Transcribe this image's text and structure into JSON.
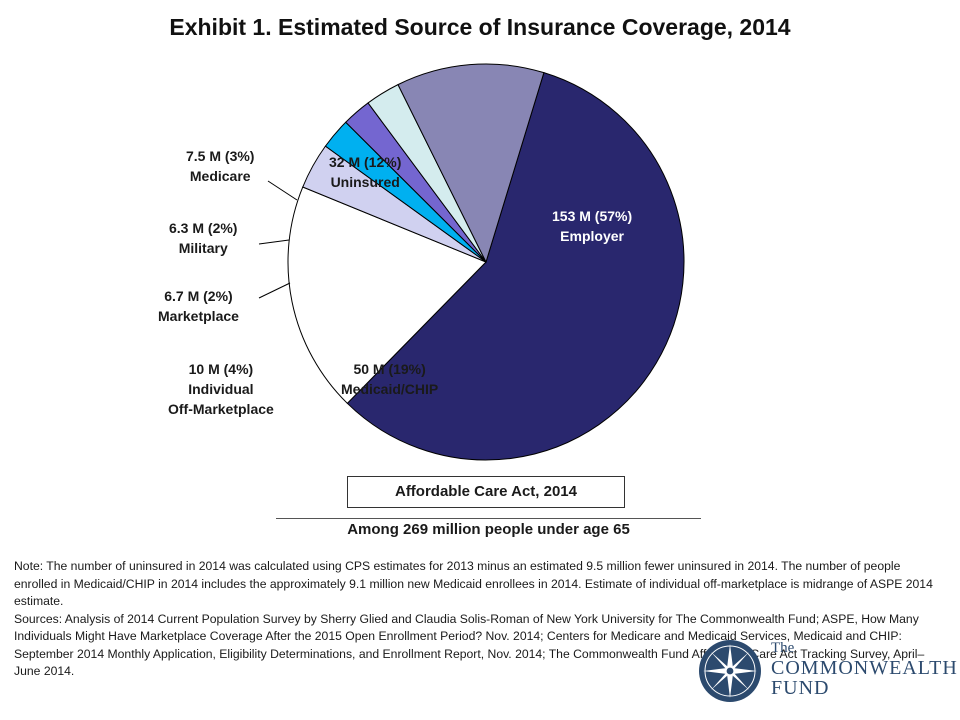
{
  "chart_data": {
    "type": "pie",
    "title": "Exhibit 1. Estimated Source of Insurance Coverage, 2014",
    "slices": [
      {
        "value_label": "153 M (57%)",
        "category": "Employer",
        "value": 153,
        "percent": 57,
        "color": "#29276e"
      },
      {
        "value_label": "50 M (19%)",
        "category": "Medicaid/CHIP",
        "value": 50,
        "percent": 19,
        "color": "#ffffff"
      },
      {
        "value_label": "10 M (4%)",
        "category": "Individual",
        "category2": "Off-Marketplace",
        "value": 10,
        "percent": 4,
        "color": "#d0d1f0"
      },
      {
        "value_label": "6.7 M (2%)",
        "category": "Marketplace",
        "value": 6.7,
        "percent": 2,
        "color": "#00b0f0"
      },
      {
        "value_label": "6.3 M (2%)",
        "category": "Military",
        "value": 6.3,
        "percent": 2,
        "color": "#7466d0"
      },
      {
        "value_label": "7.5 M (3%)",
        "category": "Medicare",
        "value": 7.5,
        "percent": 3,
        "color": "#d4ecee"
      },
      {
        "value_label": "32 M (12%)",
        "category": "Uninsured",
        "value": 32,
        "percent": 12,
        "color": "#8886b4"
      }
    ],
    "legend": "none"
  },
  "aca_box": "Affordable Care Act, 2014",
  "among": "Among 269 million people under age 65",
  "note": "Note: The number of uninsured in 2014 was calculated using CPS estimates for 2013 minus an estimated 9.5 million fewer uninsured in 2014. The number of people enrolled in Medicaid/CHIP in 2014 includes the approximately 9.1 million new Medicaid enrollees in 2014. Estimate of individual off-marketplace is midrange of ASPE 2014 estimate.",
  "sources_line1": "Sources: Analysis of 2014 Current Population Survey by Sherry Glied and Claudia Solis-Roman of New York University for The Commonwealth Fund; ASPE, How Many Individuals Might Have Marketplace Coverage After the 2015 Open Enrollment Period? Nov. 2014; Centers for Medicare and Medicaid Services, Medicaid and CHIP: September 2014 Monthly Application, Eligibility Determinations, and Enrollment Report, Nov. 2014; The Commonwealth Fund Affordable Care Act Tracking Survey, April–June 2014.",
  "logo": {
    "the": "The",
    "line1": "COMMONWEALTH",
    "line2": "FUND",
    "color": "#2c4a6e"
  }
}
